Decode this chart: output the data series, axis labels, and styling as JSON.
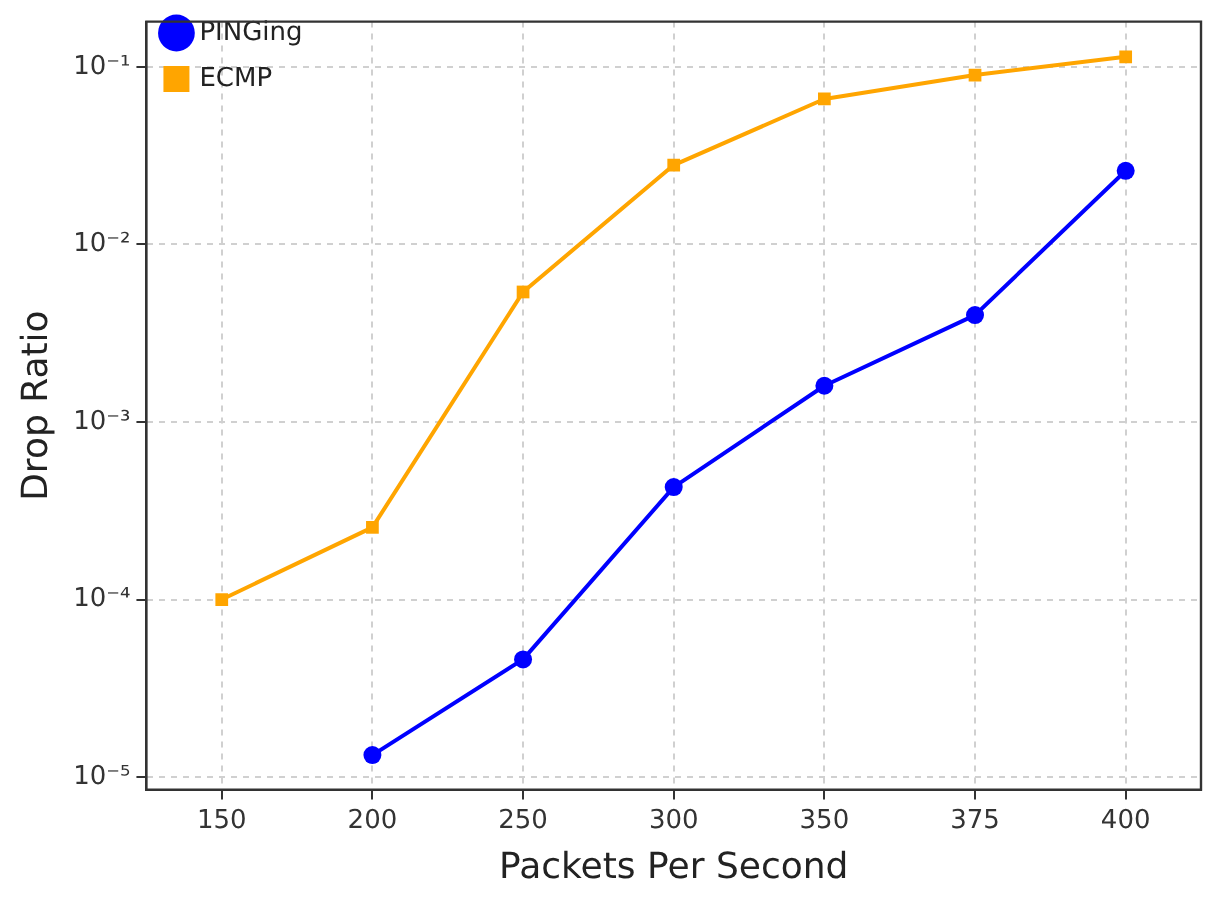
{
  "chart_data": {
    "type": "line",
    "xlabel": "Packets Per Second",
    "ylabel": "Drop Ratio",
    "categories": [
      "150",
      "200",
      "250",
      "300",
      "350",
      "375",
      "400"
    ],
    "series": [
      {
        "name": "PINGing",
        "color": "#0000ff",
        "marker": "circle",
        "values": [
          null,
          1.33e-05,
          4.6e-05,
          0.00043,
          0.0016,
          0.004,
          0.026
        ]
      },
      {
        "name": "ECMP",
        "color": "#ffa500",
        "marker": "square",
        "values": [
          0.0001,
          0.000255,
          0.0054,
          0.028,
          0.066,
          0.09,
          0.114
        ]
      }
    ],
    "log": "y",
    "ylim": [
      8.5e-06,
      0.18
    ],
    "yticks": [
      {
        "value": 1e-05,
        "label": "10⁻⁵"
      },
      {
        "value": 0.0001,
        "label": "10⁻⁴"
      },
      {
        "value": 0.001,
        "label": "10⁻³"
      },
      {
        "value": 0.01,
        "label": "10⁻²"
      },
      {
        "value": 0.1,
        "label": "10⁻¹"
      }
    ],
    "grid": true,
    "line_style": "solid",
    "legend": "top left"
  }
}
